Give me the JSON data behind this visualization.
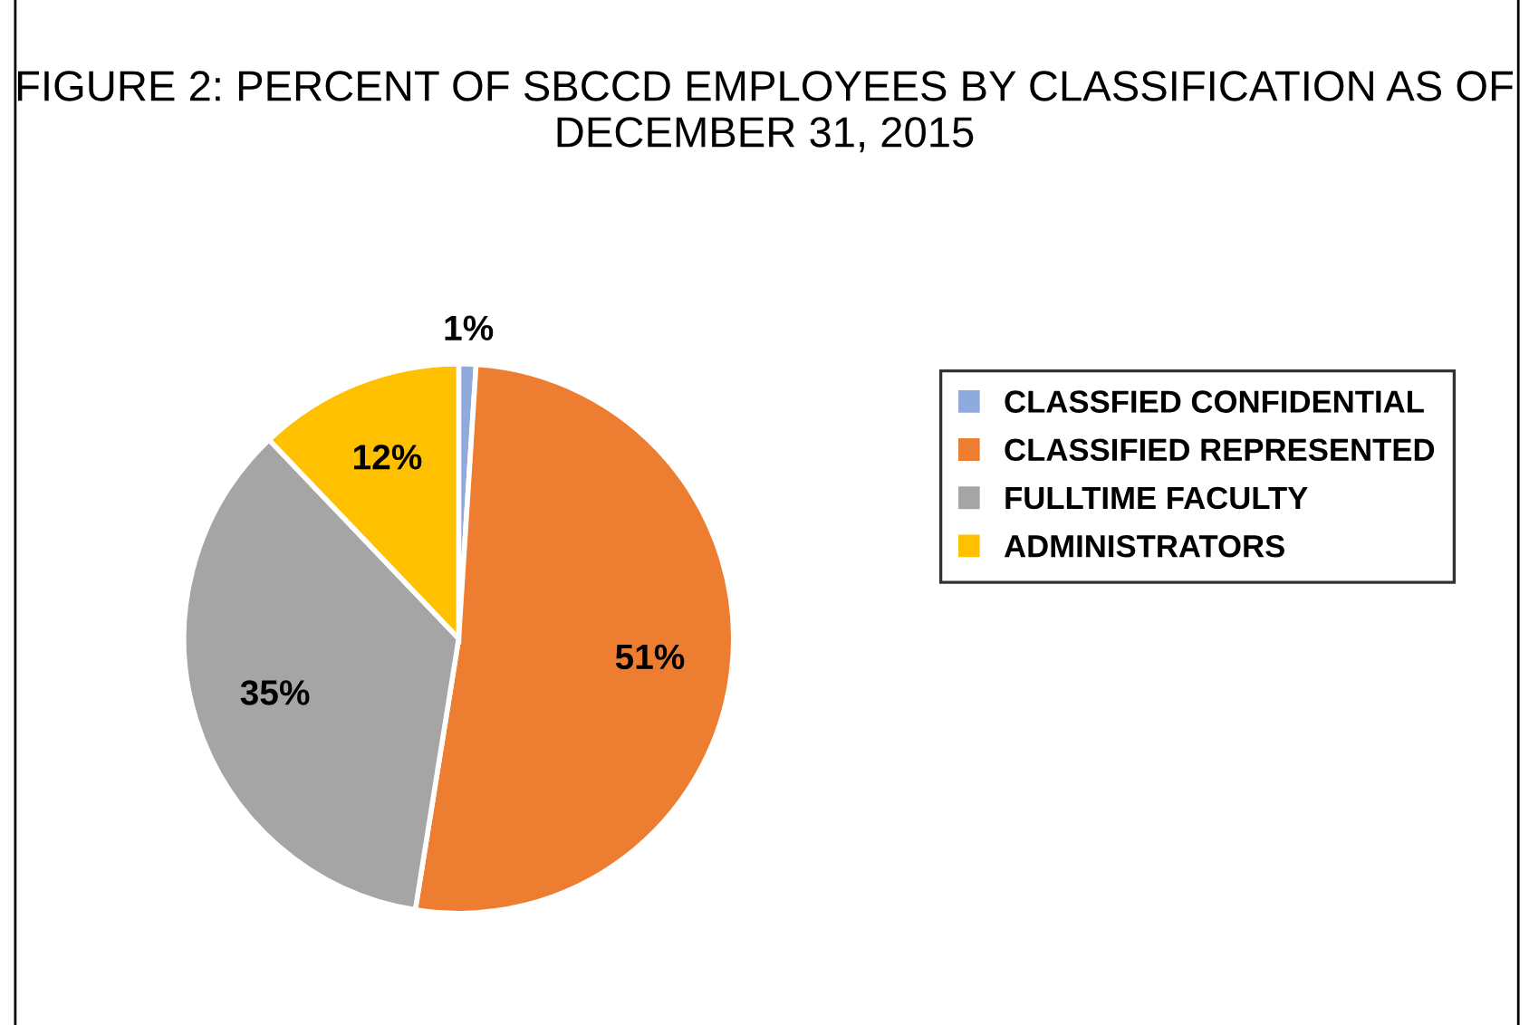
{
  "chart_data": {
    "type": "pie",
    "title": "FIGURE 2: PERCENT OF SBCCD EMPLOYEES BY CLASSIFICATION AS OF DECEMBER 31, 2015",
    "categories": [
      "CLASSFIED CONFIDENTIAL",
      "CLASSIFIED REPRESENTED",
      "FULLTIME FACULTY",
      "ADMINISTRATORS"
    ],
    "values": [
      1,
      51,
      35,
      12
    ],
    "colors": [
      "#8faadc",
      "#ed7d31",
      "#a5a5a5",
      "#ffc000"
    ],
    "value_labels": [
      "1%",
      "51%",
      "35%",
      "12%"
    ],
    "legend": "right"
  }
}
